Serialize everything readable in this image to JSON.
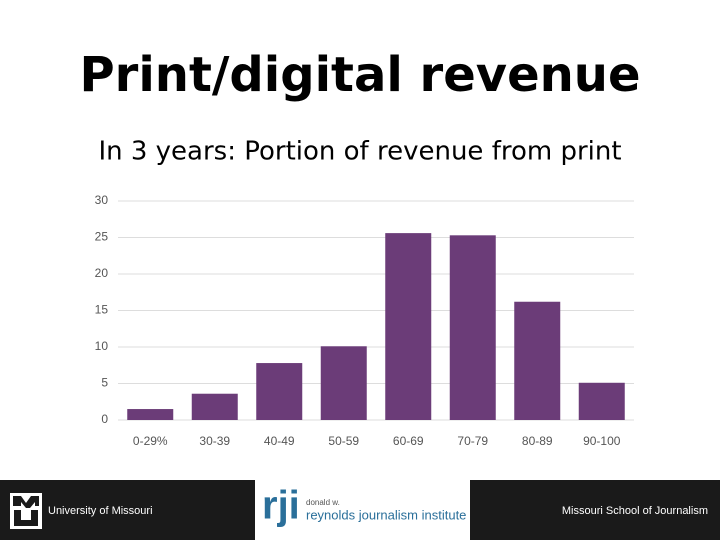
{
  "chart_data": {
    "type": "bar",
    "title": "Print/digital revenue",
    "subtitle": "In 3 years: Portion of revenue from print",
    "categories": [
      "0-29%",
      "30-39",
      "40-49",
      "50-59",
      "60-69",
      "70-79",
      "80-89",
      "90-100"
    ],
    "values": [
      1.5,
      3.6,
      7.8,
      10.1,
      25.6,
      25.3,
      16.2,
      5.1
    ],
    "color": "#6b3c78",
    "ylim": [
      0,
      30
    ],
    "yticks": [
      0,
      5,
      10,
      15,
      20,
      25,
      30
    ],
    "grid": true
  },
  "footer": {
    "left": "University of Missouri",
    "logo_mark": "rji",
    "logo_small": "donald w.",
    "logo_text": "reynolds journalism institute",
    "right": "Missouri School of Journalism"
  }
}
